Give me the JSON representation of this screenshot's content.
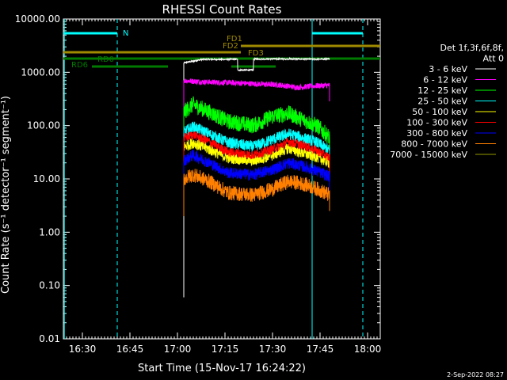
{
  "chart_data": {
    "type": "line",
    "title": "RHESSI Count Rates",
    "xlabel": "Start Time (15-Nov-17 16:24:22)",
    "ylabel": "Count Rate (s⁻¹ detector⁻¹ segment⁻¹)",
    "y_log_scale": true,
    "ylim": [
      0.01,
      10000
    ],
    "y_ticks": [
      "10000.00",
      "1000.00",
      "100.00",
      "10.00",
      "1.00",
      "0.10",
      "0.01"
    ],
    "y_tick_values": [
      10000,
      1000,
      100,
      10,
      1,
      0.1,
      0.01
    ],
    "x_range_minutes_after_1624": [
      0,
      100
    ],
    "x_ticks": [
      "16:30",
      "16:45",
      "17:00",
      "17:15",
      "17:30",
      "17:45",
      "18:00"
    ],
    "x_tick_minutes": [
      6,
      21,
      36,
      51,
      66,
      81,
      96
    ],
    "legend_header": [
      "Det 1f,3f,6f,8f,",
      "Att 0"
    ],
    "legend_position": "right",
    "series": [
      {
        "name": "3 - 6 keV",
        "color": "#ffffff",
        "t": [
          38,
          44,
          52,
          62,
          72,
          80,
          84
        ],
        "values": [
          1500,
          1750,
          1750,
          1780,
          1780,
          1760,
          1780
        ]
      },
      {
        "name": "6 - 12 keV",
        "color": "#ff00ff",
        "t": [
          38,
          44,
          52,
          60,
          68,
          74,
          80,
          84
        ],
        "values": [
          700,
          660,
          640,
          610,
          580,
          520,
          560,
          570
        ]
      },
      {
        "name": "12 - 25 keV",
        "color": "#00ff00",
        "t": [
          38,
          41,
          46,
          52,
          60,
          66,
          71,
          76,
          80,
          84
        ],
        "values": [
          180,
          250,
          180,
          120,
          100,
          150,
          170,
          125,
          100,
          60
        ]
      },
      {
        "name": "25 - 50 keV",
        "color": "#00ffff",
        "t": [
          38,
          41,
          46,
          52,
          60,
          66,
          71,
          76,
          80,
          84
        ],
        "values": [
          75,
          95,
          70,
          48,
          40,
          55,
          70,
          58,
          48,
          34
        ]
      },
      {
        "name": "50 - 100 keV",
        "color": "#ffff00",
        "t": [
          38,
          41,
          46,
          52,
          60,
          66,
          71,
          76,
          80,
          84
        ],
        "values": [
          40,
          48,
          36,
          25,
          22,
          28,
          38,
          30,
          26,
          20
        ]
      },
      {
        "name": "100 - 300 keV",
        "color": "#ff0000",
        "t": [
          38,
          41,
          46,
          52,
          60,
          66,
          71,
          76,
          80,
          84
        ],
        "values": [
          58,
          68,
          50,
          32,
          28,
          36,
          50,
          42,
          34,
          25
        ]
      },
      {
        "name": "300 - 800 keV",
        "color": "#0000ff",
        "t": [
          38,
          41,
          46,
          52,
          60,
          66,
          71,
          76,
          80,
          84
        ],
        "values": [
          22,
          28,
          20,
          13,
          12,
          15,
          20,
          17,
          14,
          11
        ]
      },
      {
        "name": "800 - 7000 keV",
        "color": "#ff8000",
        "t": [
          38,
          41,
          46,
          52,
          60,
          66,
          71,
          76,
          80,
          84
        ],
        "values": [
          10,
          12,
          9,
          5.5,
          5,
          6.5,
          9,
          8,
          6.5,
          5
        ]
      },
      {
        "name": "7000 - 15000 keV",
        "color": "#999900",
        "t": [],
        "values": []
      }
    ],
    "annotations": {
      "n_label": "N",
      "labels": [
        "FD1",
        "FD2",
        "FD3",
        "RD0",
        "RD6"
      ]
    }
  },
  "footer": {
    "timestamp": "2-Sep-2022 08:27"
  }
}
